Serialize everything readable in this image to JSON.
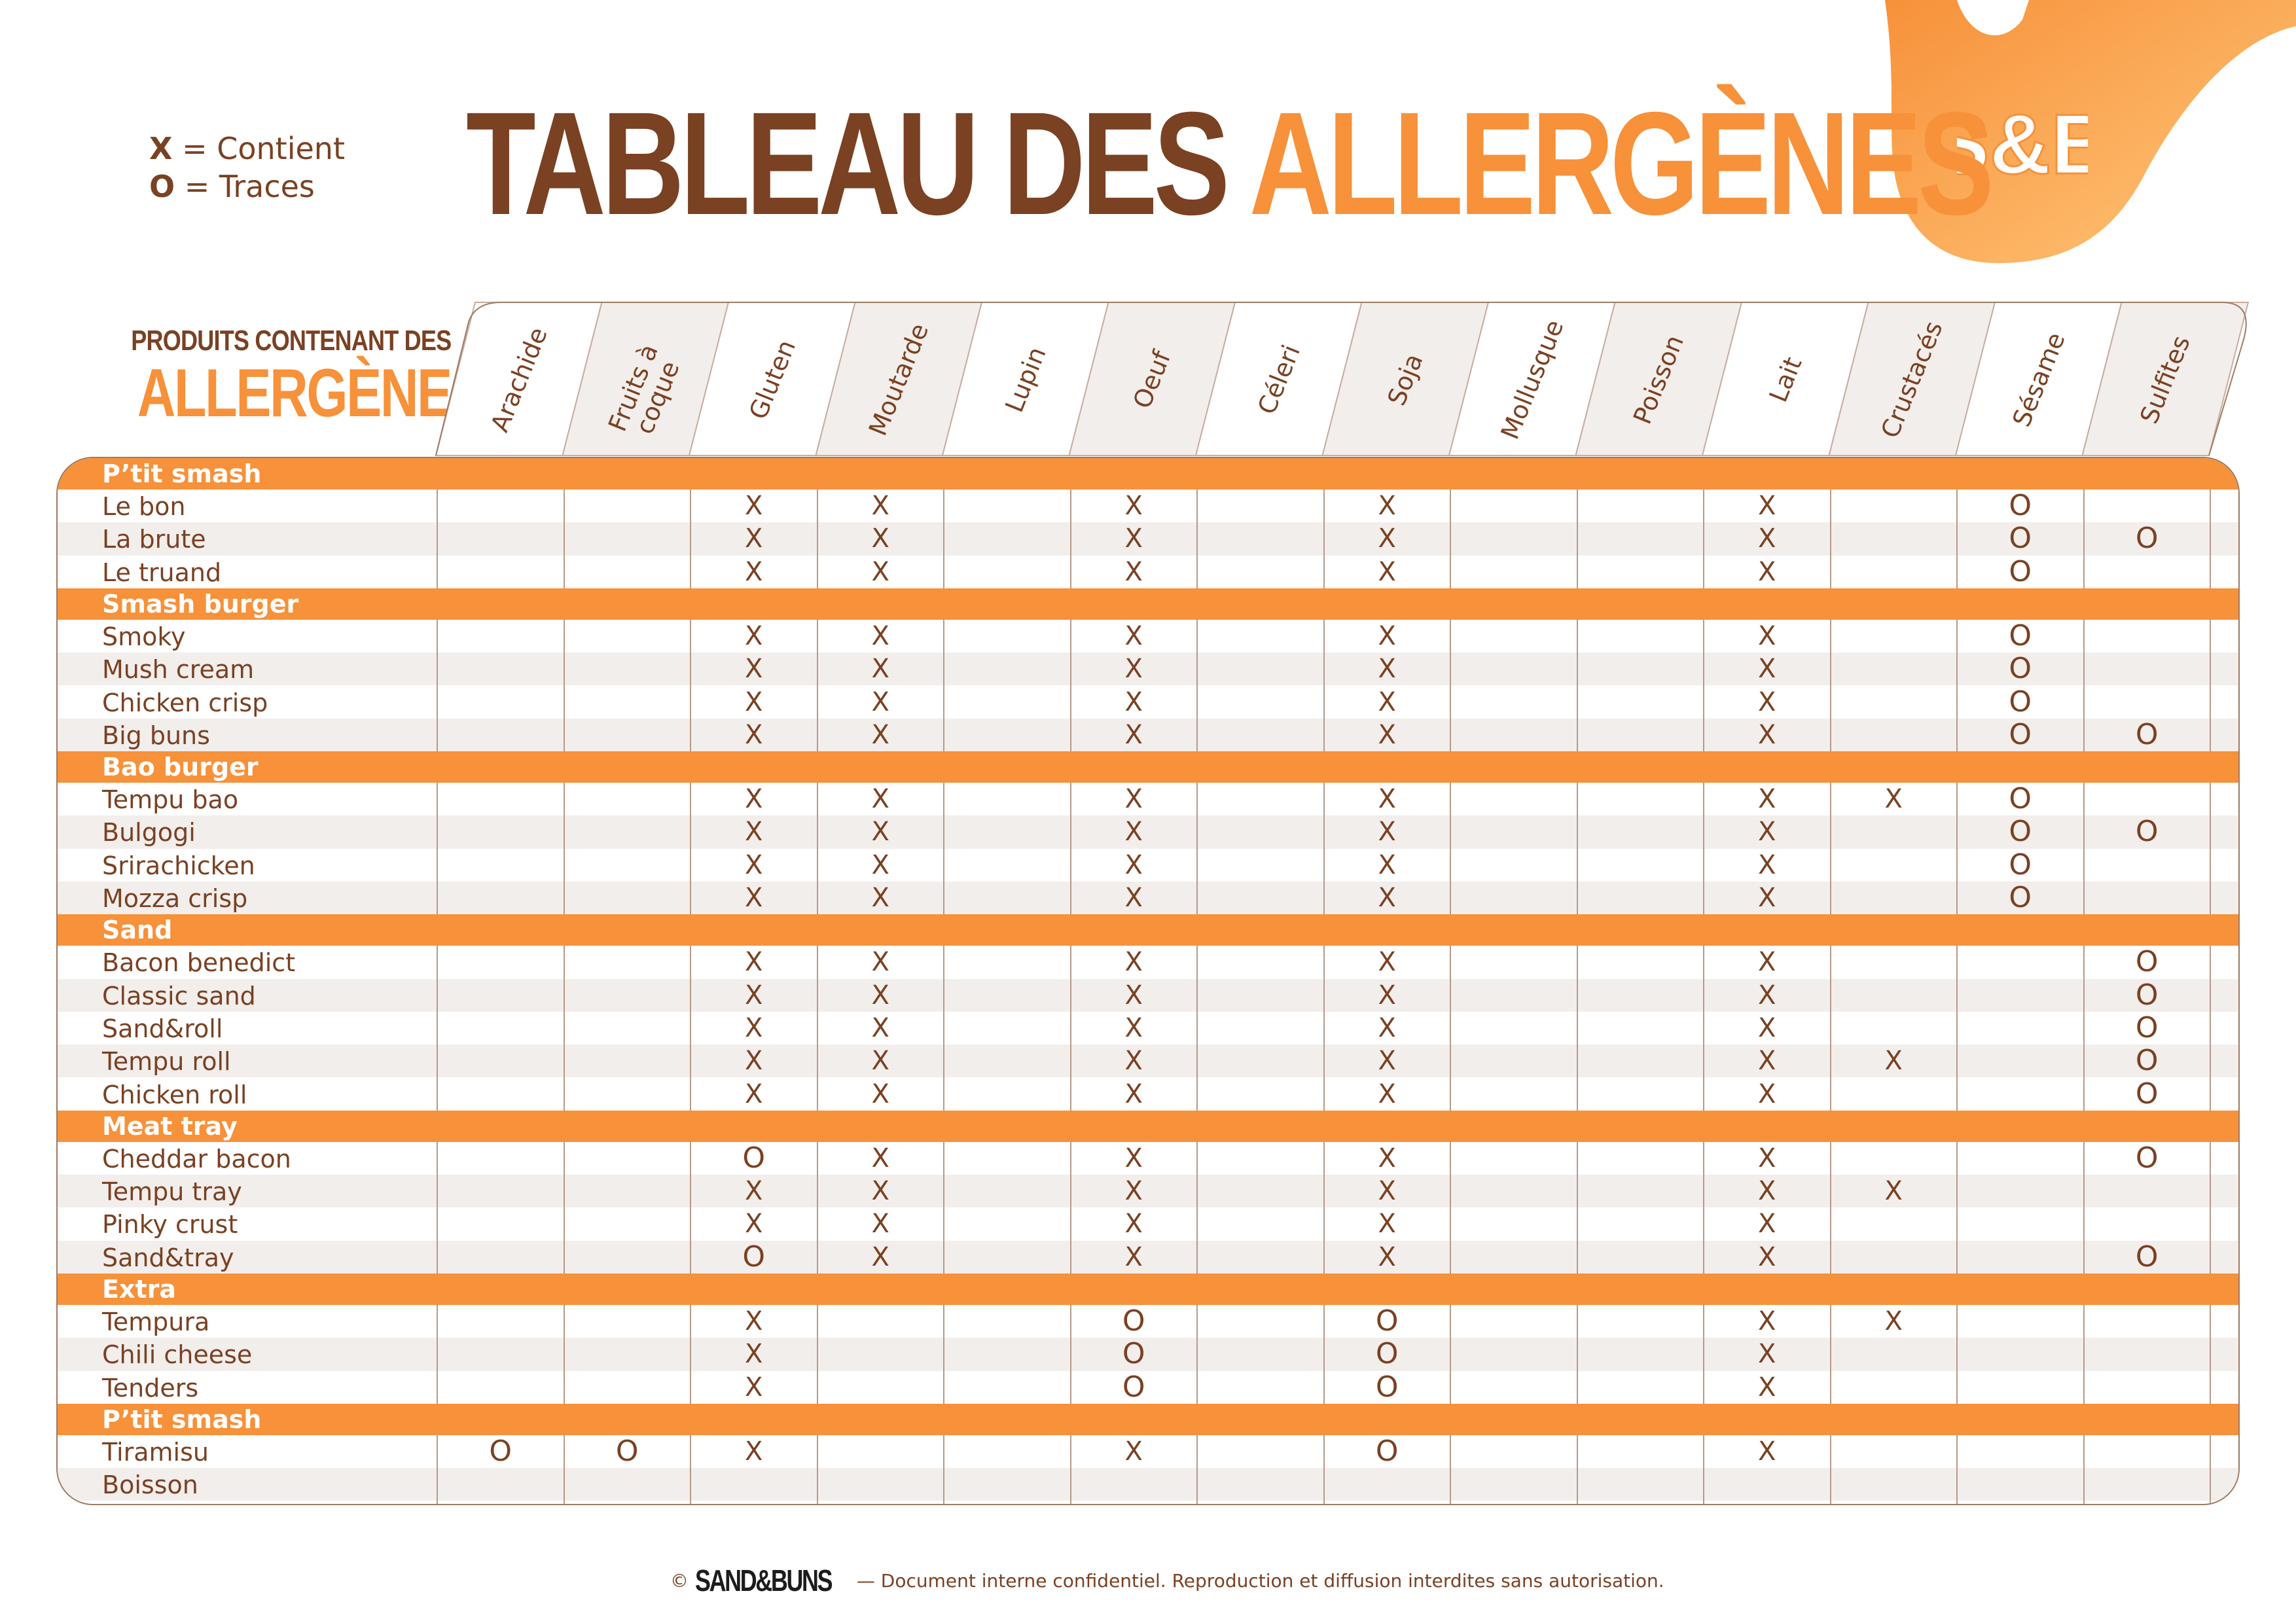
{
  "legend": {
    "x_symbol": "X",
    "x_label": "= Contient",
    "o_symbol": "O",
    "o_label": "= Traces"
  },
  "title": {
    "part1": "TABLEAU DES",
    "part2": "ALLERGÈNES"
  },
  "subheading": {
    "line1": "PRODUITS CONTENANT DES",
    "line2": "ALLERGÈNES"
  },
  "logo_text": "S&B",
  "allergens": [
    "Arachide",
    "Fruits à coque",
    "Gluten",
    "Moutarde",
    "Lupin",
    "Oeuf",
    "Céleri",
    "Soja",
    "Mollusque",
    "Poisson",
    "Lait",
    "Crustacés",
    "Sésame",
    "Sulfites"
  ],
  "sections": [
    {
      "name": "P’tit smash",
      "products": [
        {
          "name": "Le bon",
          "marks": [
            "",
            "",
            "X",
            "X",
            "",
            "X",
            "",
            "X",
            "",
            "",
            "X",
            "",
            "O",
            ""
          ]
        },
        {
          "name": "La brute",
          "marks": [
            "",
            "",
            "X",
            "X",
            "",
            "X",
            "",
            "X",
            "",
            "",
            "X",
            "",
            "O",
            "O"
          ]
        },
        {
          "name": "Le truand",
          "marks": [
            "",
            "",
            "X",
            "X",
            "",
            "X",
            "",
            "X",
            "",
            "",
            "X",
            "",
            "O",
            ""
          ]
        }
      ]
    },
    {
      "name": "Smash burger",
      "products": [
        {
          "name": "Smoky",
          "marks": [
            "",
            "",
            "X",
            "X",
            "",
            "X",
            "",
            "X",
            "",
            "",
            "X",
            "",
            "O",
            ""
          ]
        },
        {
          "name": "Mush cream",
          "marks": [
            "",
            "",
            "X",
            "X",
            "",
            "X",
            "",
            "X",
            "",
            "",
            "X",
            "",
            "O",
            ""
          ]
        },
        {
          "name": "Chicken crisp",
          "marks": [
            "",
            "",
            "X",
            "X",
            "",
            "X",
            "",
            "X",
            "",
            "",
            "X",
            "",
            "O",
            ""
          ]
        },
        {
          "name": "Big buns",
          "marks": [
            "",
            "",
            "X",
            "X",
            "",
            "X",
            "",
            "X",
            "",
            "",
            "X",
            "",
            "O",
            "O"
          ]
        }
      ]
    },
    {
      "name": "Bao burger",
      "products": [
        {
          "name": "Tempu bao",
          "marks": [
            "",
            "",
            "X",
            "X",
            "",
            "X",
            "",
            "X",
            "",
            "",
            "X",
            "X",
            "O",
            ""
          ]
        },
        {
          "name": "Bulgogi",
          "marks": [
            "",
            "",
            "X",
            "X",
            "",
            "X",
            "",
            "X",
            "",
            "",
            "X",
            "",
            "O",
            "O"
          ]
        },
        {
          "name": "Srirachicken",
          "marks": [
            "",
            "",
            "X",
            "X",
            "",
            "X",
            "",
            "X",
            "",
            "",
            "X",
            "",
            "O",
            ""
          ]
        },
        {
          "name": "Mozza crisp",
          "marks": [
            "",
            "",
            "X",
            "X",
            "",
            "X",
            "",
            "X",
            "",
            "",
            "X",
            "",
            "O",
            ""
          ]
        }
      ]
    },
    {
      "name": "Sand",
      "products": [
        {
          "name": "Bacon benedict",
          "marks": [
            "",
            "",
            "X",
            "X",
            "",
            "X",
            "",
            "X",
            "",
            "",
            "X",
            "",
            "",
            "O"
          ]
        },
        {
          "name": "Classic sand",
          "marks": [
            "",
            "",
            "X",
            "X",
            "",
            "X",
            "",
            "X",
            "",
            "",
            "X",
            "",
            "",
            "O"
          ]
        },
        {
          "name": "Sand&roll",
          "marks": [
            "",
            "",
            "X",
            "X",
            "",
            "X",
            "",
            "X",
            "",
            "",
            "X",
            "",
            "",
            "O"
          ]
        },
        {
          "name": "Tempu roll",
          "marks": [
            "",
            "",
            "X",
            "X",
            "",
            "X",
            "",
            "X",
            "",
            "",
            "X",
            "X",
            "",
            "O"
          ]
        },
        {
          "name": "Chicken roll",
          "marks": [
            "",
            "",
            "X",
            "X",
            "",
            "X",
            "",
            "X",
            "",
            "",
            "X",
            "",
            "",
            "O"
          ]
        }
      ]
    },
    {
      "name": "Meat tray",
      "products": [
        {
          "name": "Cheddar bacon",
          "marks": [
            "",
            "",
            "O",
            "X",
            "",
            "X",
            "",
            "X",
            "",
            "",
            "X",
            "",
            "",
            "O"
          ]
        },
        {
          "name": "Tempu tray",
          "marks": [
            "",
            "",
            "X",
            "X",
            "",
            "X",
            "",
            "X",
            "",
            "",
            "X",
            "X",
            "",
            ""
          ]
        },
        {
          "name": "Pinky crust",
          "marks": [
            "",
            "",
            "X",
            "X",
            "",
            "X",
            "",
            "X",
            "",
            "",
            "X",
            "",
            "",
            ""
          ]
        },
        {
          "name": "Sand&tray",
          "marks": [
            "",
            "",
            "O",
            "X",
            "",
            "X",
            "",
            "X",
            "",
            "",
            "X",
            "",
            "",
            "O"
          ]
        }
      ]
    },
    {
      "name": "Extra",
      "products": [
        {
          "name": "Tempura",
          "marks": [
            "",
            "",
            "X",
            "",
            "",
            "O",
            "",
            "O",
            "",
            "",
            "X",
            "X",
            "",
            ""
          ]
        },
        {
          "name": "Chili cheese",
          "marks": [
            "",
            "",
            "X",
            "",
            "",
            "O",
            "",
            "O",
            "",
            "",
            "X",
            "",
            "",
            ""
          ]
        },
        {
          "name": "Tenders",
          "marks": [
            "",
            "",
            "X",
            "",
            "",
            "O",
            "",
            "O",
            "",
            "",
            "X",
            "",
            "",
            ""
          ]
        }
      ]
    },
    {
      "name": "P’tit smash",
      "products": [
        {
          "name": "Tiramisu",
          "marks": [
            "O",
            "O",
            "X",
            "",
            "",
            "X",
            "",
            "O",
            "",
            "",
            "X",
            "",
            "",
            ""
          ]
        },
        {
          "name": "Boisson",
          "marks": [
            "",
            "",
            "",
            "",
            "",
            "",
            "",
            "",
            "",
            "",
            "",
            "",
            "",
            ""
          ]
        }
      ]
    }
  ],
  "footer": {
    "copyright": "©",
    "brand": "SAND&BUNS",
    "text": "— Document interne confidentiel. Reproduction et diffusion interdites sans autorisation."
  },
  "colors": {
    "brown": "#7a4122",
    "orange": "#f7913a",
    "row_alt": "#f2eeec"
  }
}
